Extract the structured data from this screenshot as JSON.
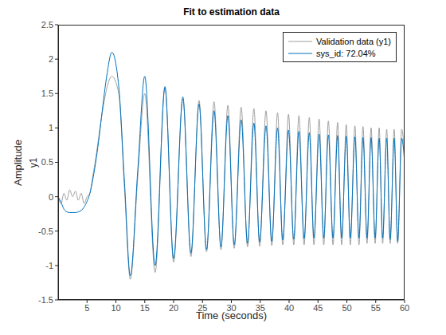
{
  "chart_data": {
    "type": "line",
    "title": "Fit to estimation data",
    "xlabel": "Time (seconds)",
    "ylabel": "y1",
    "y_axis_title": "Amplitude",
    "legend": "northeast",
    "grid": false,
    "xlim": [
      0,
      60
    ],
    "xticks": [
      5,
      10,
      15,
      20,
      25,
      30,
      35,
      40,
      45,
      50,
      55,
      60
    ],
    "ylim": [
      -1.5,
      2.5
    ],
    "yticks": [
      -1.5,
      -1,
      -0.5,
      0,
      0.5,
      1,
      1.5,
      2,
      2.5
    ],
    "x": [
      0,
      0.5,
      1,
      1.5,
      2,
      2.5,
      3,
      3.5,
      4,
      4.5,
      5,
      5.5,
      6,
      6.5,
      7,
      7.5,
      8,
      8.5,
      9.3,
      10.5,
      11.5,
      12.5,
      13.8,
      15,
      16.8,
      18.5,
      20,
      21.6,
      23,
      24.4,
      25.7,
      27,
      28.2,
      29.4,
      30.5,
      31.7,
      32.8,
      33.9,
      34.9,
      36,
      37,
      38,
      38.9,
      39.9,
      40.8,
      41.7,
      42.6,
      43.5,
      44.3,
      45.2,
      46,
      46.8,
      47.6,
      48.4,
      49.1,
      49.9,
      50.6,
      51.4,
      52.1,
      52.8,
      53.5,
      54.2,
      54.9,
      55.6,
      56.2,
      56.9,
      57.5,
      58.2,
      58.8,
      59.5,
      60
    ],
    "series": [
      {
        "name": "Validation data (y1)",
        "color": "#a0a0a0",
        "line_style": "solid",
        "values": [
          0,
          -0.1,
          0.05,
          -0.05,
          0.1,
          0,
          0.08,
          -0.05,
          0.05,
          -0.1,
          0,
          0.05,
          0.3,
          0.55,
          0.85,
          1.15,
          1.4,
          1.6,
          1.75,
          1.5,
          0.1,
          -1.2,
          0.3,
          1.5,
          -1.1,
          1.58,
          -0.95,
          1.42,
          -0.87,
          1.4,
          -0.8,
          1.38,
          -0.77,
          1.33,
          -0.75,
          1.3,
          -0.73,
          1.28,
          -0.72,
          1.25,
          -0.71,
          1.22,
          -0.7,
          1.2,
          -0.7,
          1.18,
          -0.7,
          1.15,
          -0.7,
          1.13,
          -0.7,
          1.1,
          -0.7,
          1.08,
          -0.7,
          1.05,
          -0.7,
          1.03,
          -0.7,
          1.02,
          -0.68,
          1,
          -0.68,
          1,
          -0.68,
          0.98,
          -0.68,
          0.98,
          -0.68,
          0.98,
          0.6
        ]
      },
      {
        "name": "sys_id: 72.04%",
        "color": "#0072bd",
        "line_style": "solid",
        "values": [
          0,
          -0.08,
          -0.18,
          -0.22,
          -0.23,
          -0.23,
          -0.23,
          -0.22,
          -0.2,
          -0.15,
          -0.07,
          0.05,
          0.25,
          0.5,
          0.8,
          1.15,
          1.5,
          1.8,
          2.1,
          1.6,
          0.2,
          -1.15,
          0.4,
          1.75,
          -1,
          1.6,
          -0.9,
          1.45,
          -0.82,
          1.35,
          -0.77,
          1.25,
          -0.73,
          1.18,
          -0.7,
          1.12,
          -0.68,
          1.07,
          -0.66,
          1.03,
          -0.65,
          1,
          -0.63,
          0.97,
          -0.62,
          0.95,
          -0.61,
          0.93,
          -0.6,
          0.91,
          -0.6,
          0.9,
          -0.6,
          0.89,
          -0.6,
          0.88,
          -0.6,
          0.87,
          -0.6,
          0.86,
          -0.6,
          0.86,
          -0.6,
          0.85,
          -0.6,
          0.85,
          -0.62,
          0.85,
          -0.65,
          0.85,
          0.5
        ]
      }
    ]
  }
}
